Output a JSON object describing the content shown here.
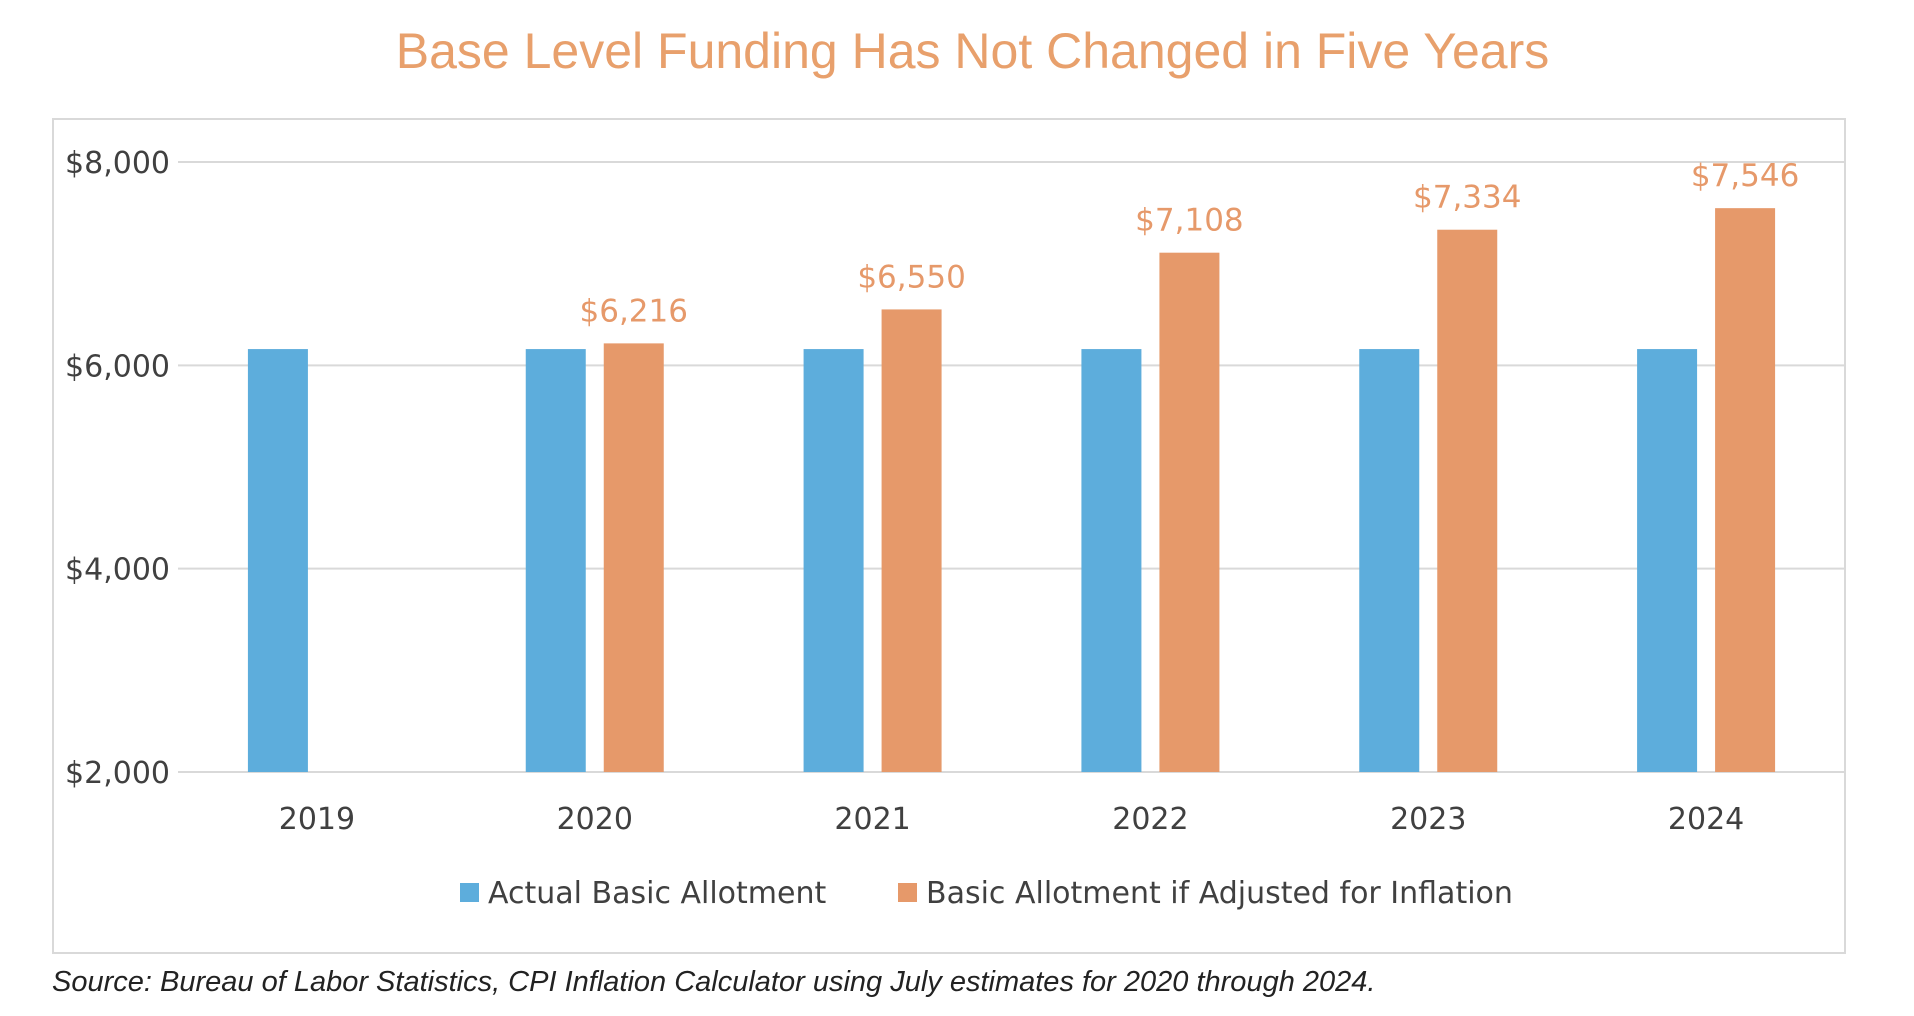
{
  "chart_data": {
    "type": "bar",
    "title": "Base Level Funding Has Not Changed in Five Years",
    "categories": [
      "2019",
      "2020",
      "2021",
      "2022",
      "2023",
      "2024"
    ],
    "series": [
      {
        "name": "Actual Basic Allotment",
        "color": "#5DADDC",
        "values": [
          6160,
          6160,
          6160,
          6160,
          6160,
          6160
        ],
        "labels": [
          "",
          "",
          "",
          "",
          "",
          ""
        ]
      },
      {
        "name": "Basic Allotment if Adjusted for Inflation",
        "color": "#E6996A",
        "values": [
          null,
          6216,
          6550,
          7108,
          7334,
          7546
        ],
        "labels": [
          "",
          "$6,216",
          "$6,550",
          "$7,108",
          "$7,334",
          "$7,546"
        ]
      }
    ],
    "yticks": [
      {
        "value": 2000,
        "label": "$2,000"
      },
      {
        "value": 4000,
        "label": "$4,000"
      },
      {
        "value": 6000,
        "label": "$6,000"
      },
      {
        "value": 8000,
        "label": "$8,000"
      }
    ],
    "ylim": [
      2000,
      8000
    ],
    "grid": true,
    "legend_position": "bottom",
    "source": "Source: Bureau of Labor Statistics, CPI Inflation Calculator using July estimates for 2020 through 2024."
  }
}
